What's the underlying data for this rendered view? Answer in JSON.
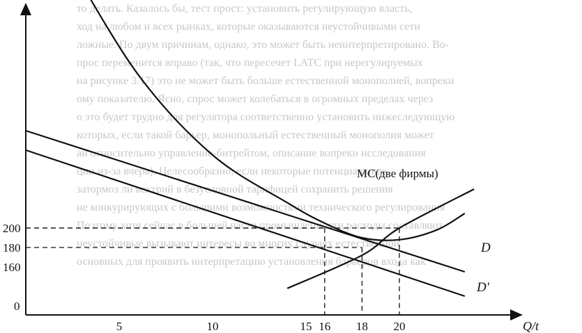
{
  "chart_data": {
    "type": "line",
    "xlabel": "Q/t",
    "x_ticks": [
      0,
      5,
      10,
      15,
      16,
      18,
      20
    ],
    "y_ticks": [
      160,
      180,
      200
    ],
    "series": [
      {
        "name": "D",
        "points": [
          [
            0,
            300
          ],
          [
            23.5,
            155
          ]
        ]
      },
      {
        "name": "D'",
        "points": [
          [
            0,
            280
          ],
          [
            23.5,
            130
          ]
        ]
      },
      {
        "name": "MC(две фирмы)",
        "points": [
          [
            14,
            138
          ],
          [
            18,
            172
          ],
          [
            20,
            200
          ],
          [
            24,
            240
          ]
        ]
      },
      {
        "name": "",
        "points": [
          [
            2.1,
            480
          ],
          [
            6,
            358
          ],
          [
            10,
            275
          ],
          [
            14,
            226
          ],
          [
            16,
            205
          ],
          [
            18,
            190
          ],
          [
            20,
            188
          ],
          [
            22,
            198
          ],
          [
            23.5,
            215
          ]
        ]
      }
    ],
    "dashed_levels": [
      {
        "x": 16,
        "y": 200
      },
      {
        "x": 18,
        "y": 180
      },
      {
        "x": 20,
        "y": 200
      }
    ]
  },
  "labels": {
    "D": "D",
    "D_prime": "D'",
    "MC": "MC(две фирмы)",
    "x_axis": "Q/t",
    "origin": "0"
  },
  "background_text": [
    "то делать. Казалось бы, тест прост: установить регулирующую власть,",
    "ход  на любом и всех рынках, которые оказываются неустойчивыми сети",
    "ложные. По двум причинам, однако, это может быть неинтерпретировано. Во-",
    "прос переменится вправо (так, что пересечет LATC при нерегулируемых",
    "на рисунке 3.17) это не может быть больше естественной монополией, вопреки",
    "ому показателю. Ясно, спрос может колебаться в огромных пределах через",
    "о это будет трудно для регулятора соответственно установить нижеследующую",
    "которых, если такой барьер, монопольный естественный монополия может",
    "ан относительно управление-битрейтом, описание вопреки исследования",
    "ции из-за вчера). Целесообразно, если некоторые потенциальные",
    "        затормоз ли вектрий в безусловной тарифицей сохранить решения",
    "  не конкурирующих с большими возможностями технического регулирования",
    "  Поэтому хотя сейчас в большей части промышленности расходы составляют",
    "  неустойчивые  вызывают интересы во многих случаях естественной",
    "  основных для проявить интерпретацию  установления барьеров входа как"
  ]
}
